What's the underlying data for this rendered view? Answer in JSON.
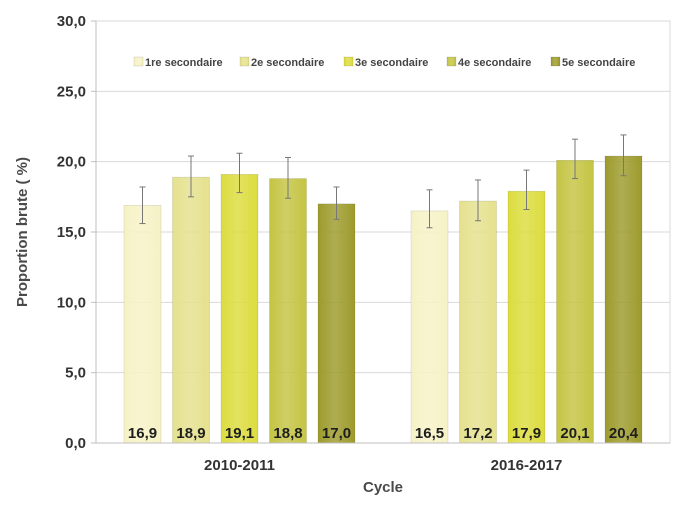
{
  "chart_data": {
    "type": "bar",
    "categories": [
      "2010-2011",
      "2016-2017"
    ],
    "series": [
      {
        "name": "1re secondaire",
        "values": [
          16.9,
          16.5
        ],
        "value_labels": [
          "16,9",
          "16,5"
        ],
        "error_low": [
          15.6,
          15.3
        ],
        "error_high": [
          18.2,
          18.0
        ],
        "color": "#f6f2c6"
      },
      {
        "name": "2e secondaire",
        "values": [
          18.9,
          17.2
        ],
        "value_labels": [
          "18,9",
          "17,2"
        ],
        "error_low": [
          17.5,
          15.8
        ],
        "error_high": [
          20.4,
          18.7
        ],
        "color": "#e5e18e"
      },
      {
        "name": "3e secondaire",
        "values": [
          19.1,
          17.9
        ],
        "value_labels": [
          "19,1",
          "17,9"
        ],
        "error_low": [
          17.8,
          16.6
        ],
        "error_high": [
          20.6,
          19.4
        ],
        "color": "#dcdc3e"
      },
      {
        "name": "4e secondaire",
        "values": [
          18.8,
          20.1
        ],
        "value_labels": [
          "18,8",
          "20,1"
        ],
        "error_low": [
          17.4,
          18.8
        ],
        "error_high": [
          20.3,
          21.6
        ],
        "color": "#c4c443"
      },
      {
        "name": "5e secondaire",
        "values": [
          17.0,
          20.4
        ],
        "value_labels": [
          "17,0",
          "20,4"
        ],
        "error_low": [
          15.9,
          19.0
        ],
        "error_high": [
          18.2,
          21.9
        ],
        "color": "#9d9b2c"
      }
    ],
    "xlabel": "Cycle",
    "ylabel": "Proportion brute ( %)",
    "ylim": [
      0,
      30
    ],
    "yticks": [
      0,
      5,
      10,
      15,
      20,
      25,
      30
    ],
    "ytick_labels": [
      "0,0",
      "5,0",
      "10,0",
      "15,0",
      "20,0",
      "25,0",
      "30,0"
    ],
    "grid": true,
    "legend_position": "top"
  }
}
